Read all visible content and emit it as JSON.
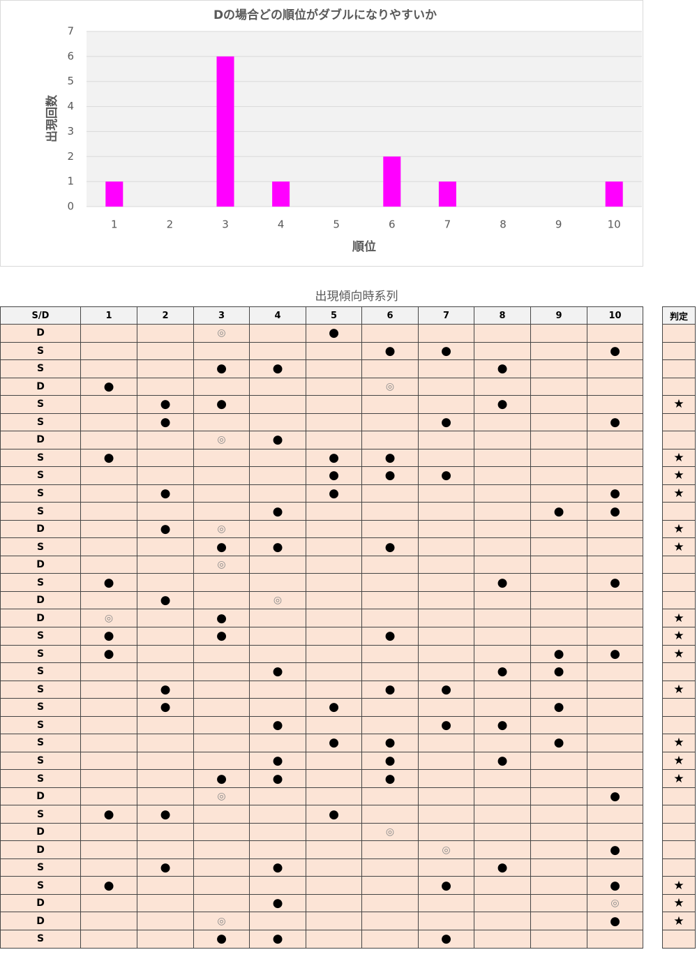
{
  "chart_data": {
    "type": "bar",
    "title": "Dの場合どの順位がダブルになりやすいか",
    "x_label": "順位",
    "y_label": "出現回数",
    "categories": [
      "1",
      "2",
      "3",
      "4",
      "5",
      "6",
      "7",
      "8",
      "9",
      "10"
    ],
    "values": [
      1,
      0,
      6,
      1,
      0,
      2,
      1,
      0,
      0,
      1
    ],
    "color": "#ff00ff",
    "ylim": [
      0,
      7
    ],
    "yticks": [
      0,
      1,
      2,
      3,
      4,
      5,
      6,
      7
    ],
    "grid": true
  },
  "table": {
    "title": "出現傾向時系列",
    "header": [
      "S/D",
      "1",
      "2",
      "3",
      "4",
      "5",
      "6",
      "7",
      "8",
      "9",
      "10"
    ],
    "judgment_header": "判定",
    "rows": [
      {
        "type": "D",
        "cells": [
          null,
          null,
          "◎",
          null,
          "●",
          null,
          null,
          null,
          null,
          null
        ],
        "judgment": null
      },
      {
        "type": "S",
        "cells": [
          null,
          null,
          null,
          null,
          null,
          "●",
          "●",
          null,
          null,
          "●"
        ],
        "judgment": null
      },
      {
        "type": "S",
        "cells": [
          null,
          null,
          "●",
          "●",
          null,
          null,
          null,
          "●",
          null,
          null
        ],
        "judgment": null
      },
      {
        "type": "D",
        "cells": [
          "●",
          null,
          null,
          null,
          null,
          "◎",
          null,
          null,
          null,
          null
        ],
        "judgment": null
      },
      {
        "type": "S",
        "cells": [
          null,
          "●",
          "●",
          null,
          null,
          null,
          null,
          "●",
          null,
          null
        ],
        "judgment": "★"
      },
      {
        "type": "S",
        "cells": [
          null,
          "●",
          null,
          null,
          null,
          null,
          "●",
          null,
          null,
          "●"
        ],
        "judgment": null
      },
      {
        "type": "D",
        "cells": [
          null,
          null,
          "◎",
          "●",
          null,
          null,
          null,
          null,
          null,
          null
        ],
        "judgment": null
      },
      {
        "type": "S",
        "cells": [
          "●",
          null,
          null,
          null,
          "●",
          "●",
          null,
          null,
          null,
          null
        ],
        "judgment": "★"
      },
      {
        "type": "S",
        "cells": [
          null,
          null,
          null,
          null,
          "●",
          "●",
          "●",
          null,
          null,
          null
        ],
        "judgment": "★"
      },
      {
        "type": "S",
        "cells": [
          null,
          "●",
          null,
          null,
          "●",
          null,
          null,
          null,
          null,
          "●"
        ],
        "judgment": "★"
      },
      {
        "type": "S",
        "cells": [
          null,
          null,
          null,
          "●",
          null,
          null,
          null,
          null,
          "●",
          "●"
        ],
        "judgment": null
      },
      {
        "type": "D",
        "cells": [
          null,
          "●",
          "◎",
          null,
          null,
          null,
          null,
          null,
          null,
          null
        ],
        "judgment": "★"
      },
      {
        "type": "S",
        "cells": [
          null,
          null,
          "●",
          "●",
          null,
          "●",
          null,
          null,
          null,
          null
        ],
        "judgment": "★"
      },
      {
        "type": "D",
        "cells": [
          null,
          null,
          "◎",
          null,
          null,
          null,
          null,
          null,
          null,
          null
        ],
        "judgment": null
      },
      {
        "type": "S",
        "cells": [
          "●",
          null,
          null,
          null,
          null,
          null,
          null,
          "●",
          null,
          "●"
        ],
        "judgment": null
      },
      {
        "type": "D",
        "cells": [
          null,
          "●",
          null,
          "◎",
          null,
          null,
          null,
          null,
          null,
          null
        ],
        "judgment": null
      },
      {
        "type": "D",
        "cells": [
          "◎",
          null,
          "●",
          null,
          null,
          null,
          null,
          null,
          null,
          null
        ],
        "judgment": "★"
      },
      {
        "type": "S",
        "cells": [
          "●",
          null,
          "●",
          null,
          null,
          "●",
          null,
          null,
          null,
          null
        ],
        "judgment": "★"
      },
      {
        "type": "S",
        "cells": [
          "●",
          null,
          null,
          null,
          null,
          null,
          null,
          null,
          "●",
          "●"
        ],
        "judgment": "★"
      },
      {
        "type": "S",
        "cells": [
          null,
          null,
          null,
          "●",
          null,
          null,
          null,
          "●",
          "●",
          null
        ],
        "judgment": null
      },
      {
        "type": "S",
        "cells": [
          null,
          "●",
          null,
          null,
          null,
          "●",
          "●",
          null,
          null,
          null
        ],
        "judgment": "★"
      },
      {
        "type": "S",
        "cells": [
          null,
          "●",
          null,
          null,
          "●",
          null,
          null,
          null,
          "●",
          null
        ],
        "judgment": null
      },
      {
        "type": "S",
        "cells": [
          null,
          null,
          null,
          "●",
          null,
          null,
          "●",
          "●",
          null,
          null
        ],
        "judgment": null
      },
      {
        "type": "S",
        "cells": [
          null,
          null,
          null,
          null,
          "●",
          "●",
          null,
          null,
          "●",
          null
        ],
        "judgment": "★"
      },
      {
        "type": "S",
        "cells": [
          null,
          null,
          null,
          "●",
          null,
          "●",
          null,
          "●",
          null,
          null
        ],
        "judgment": "★"
      },
      {
        "type": "S",
        "cells": [
          null,
          null,
          "●",
          "●",
          null,
          "●",
          null,
          null,
          null,
          null
        ],
        "judgment": "★"
      },
      {
        "type": "D",
        "cells": [
          null,
          null,
          "◎",
          null,
          null,
          null,
          null,
          null,
          null,
          "●"
        ],
        "judgment": null
      },
      {
        "type": "S",
        "cells": [
          "●",
          "●",
          null,
          null,
          "●",
          null,
          null,
          null,
          null,
          null
        ],
        "judgment": null
      },
      {
        "type": "D",
        "cells": [
          null,
          null,
          null,
          null,
          null,
          "◎",
          null,
          null,
          null,
          null
        ],
        "judgment": null
      },
      {
        "type": "D",
        "cells": [
          null,
          null,
          null,
          null,
          null,
          null,
          "◎",
          null,
          null,
          "●"
        ],
        "judgment": null
      },
      {
        "type": "S",
        "cells": [
          null,
          "●",
          null,
          "●",
          null,
          null,
          null,
          "●",
          null,
          null
        ],
        "judgment": null
      },
      {
        "type": "S",
        "cells": [
          "●",
          null,
          null,
          null,
          null,
          null,
          "●",
          null,
          null,
          "●"
        ],
        "judgment": "★"
      },
      {
        "type": "D",
        "cells": [
          null,
          null,
          null,
          "●",
          null,
          null,
          null,
          null,
          null,
          "◎"
        ],
        "judgment": "★"
      },
      {
        "type": "D",
        "cells": [
          null,
          null,
          "◎",
          null,
          null,
          null,
          null,
          null,
          null,
          "●"
        ],
        "judgment": "★"
      },
      {
        "type": "S",
        "cells": [
          null,
          null,
          "●",
          "●",
          null,
          null,
          "●",
          null,
          null,
          null
        ],
        "judgment": null
      }
    ]
  }
}
